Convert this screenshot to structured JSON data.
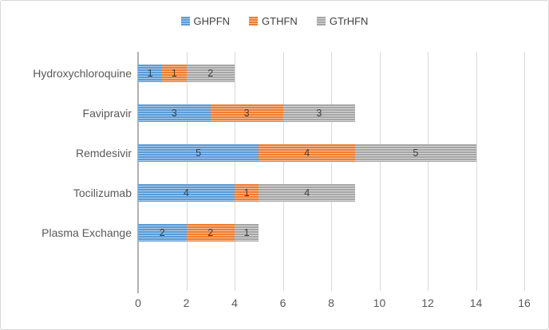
{
  "chart_data": {
    "type": "bar",
    "orientation": "horizontal",
    "stacked": true,
    "pattern": "light-horizontal-stripes",
    "title": "",
    "xlabel": "",
    "ylabel": "",
    "categories": [
      "Hydroxychloroquine",
      "Favipravir",
      "Remdesivir",
      "Tocilizumab",
      "Plasma Exchange"
    ],
    "series": [
      {
        "name": "GHPFN",
        "color": "#5b9bd5",
        "stripe_color": "#a9ccec",
        "values": [
          1,
          3,
          5,
          4,
          2
        ]
      },
      {
        "name": "GTHFN",
        "color": "#ed7d31",
        "stripe_color": "#f6c09a",
        "values": [
          1,
          3,
          4,
          1,
          2
        ]
      },
      {
        "name": "GTrHFN",
        "color": "#a5a5a5",
        "stripe_color": "#d8d8d8",
        "values": [
          2,
          3,
          5,
          4,
          1
        ]
      }
    ],
    "totals": [
      4,
      9,
      14,
      9,
      5
    ],
    "xlim": [
      0,
      16
    ],
    "x_ticks": [
      "0",
      "2",
      "4",
      "6",
      "8",
      "10",
      "12",
      "14",
      "16"
    ],
    "grid": true,
    "legend_position": "top-center",
    "data_labels": true,
    "data_label_color": "#3f3f3f",
    "axis_text_color": "#595959",
    "gridline_color": "#d9d9d9",
    "axis_line_color": "#b3b3b3",
    "background_color": "#ffffff"
  }
}
